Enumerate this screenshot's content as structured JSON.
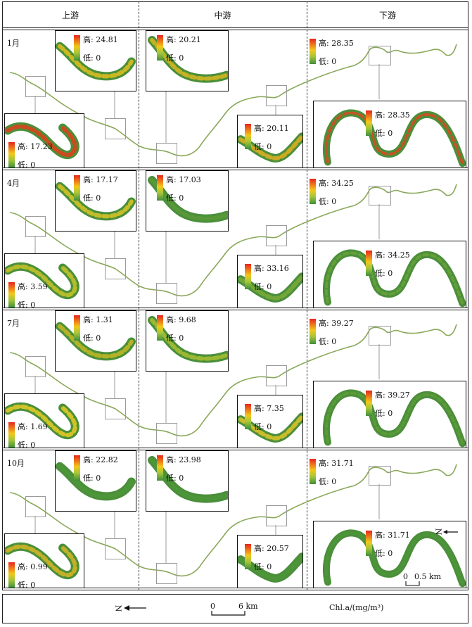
{
  "header": {
    "upstream": "上游",
    "midstream": "中游",
    "downstream": "下游"
  },
  "legend_text": {
    "high_prefix": "高: ",
    "low_prefix": "低: ",
    "low_value": "0"
  },
  "panels": [
    {
      "month": "1月",
      "up_small": "24.81",
      "up_large": "17.23",
      "mid_top": "20.21",
      "mid_small": "20.11",
      "down_top": "28.35",
      "down_large": "28.35"
    },
    {
      "month": "4月",
      "up_small": "17.17",
      "up_large": "3.59",
      "mid_top": "17.03",
      "mid_small": "33.16",
      "down_top": "34.25",
      "down_large": "34.25"
    },
    {
      "month": "7月",
      "up_small": "1.31",
      "up_large": "1.69",
      "mid_top": "9.68",
      "mid_small": "7.35",
      "down_top": "39.27",
      "down_large": "39.27"
    },
    {
      "month": "10月",
      "up_small": "22.82",
      "up_large": "0.99",
      "mid_top": "23.98",
      "mid_small": "20.57",
      "down_top": "31.71",
      "down_large": "31.71"
    }
  ],
  "footer": {
    "north": "N",
    "scale_zero": "0",
    "scale_end": "6 km",
    "unit": "Chl.a/(mg/m³)"
  },
  "inset_scale": {
    "north": "N",
    "zero": "0",
    "end": "0.5 km"
  },
  "colors": {
    "high": "#e8241c",
    "mid": "#f2c81a",
    "low": "#3f8f3a",
    "river": "#8aa85a",
    "zoom_box": "#9a9a9a"
  }
}
